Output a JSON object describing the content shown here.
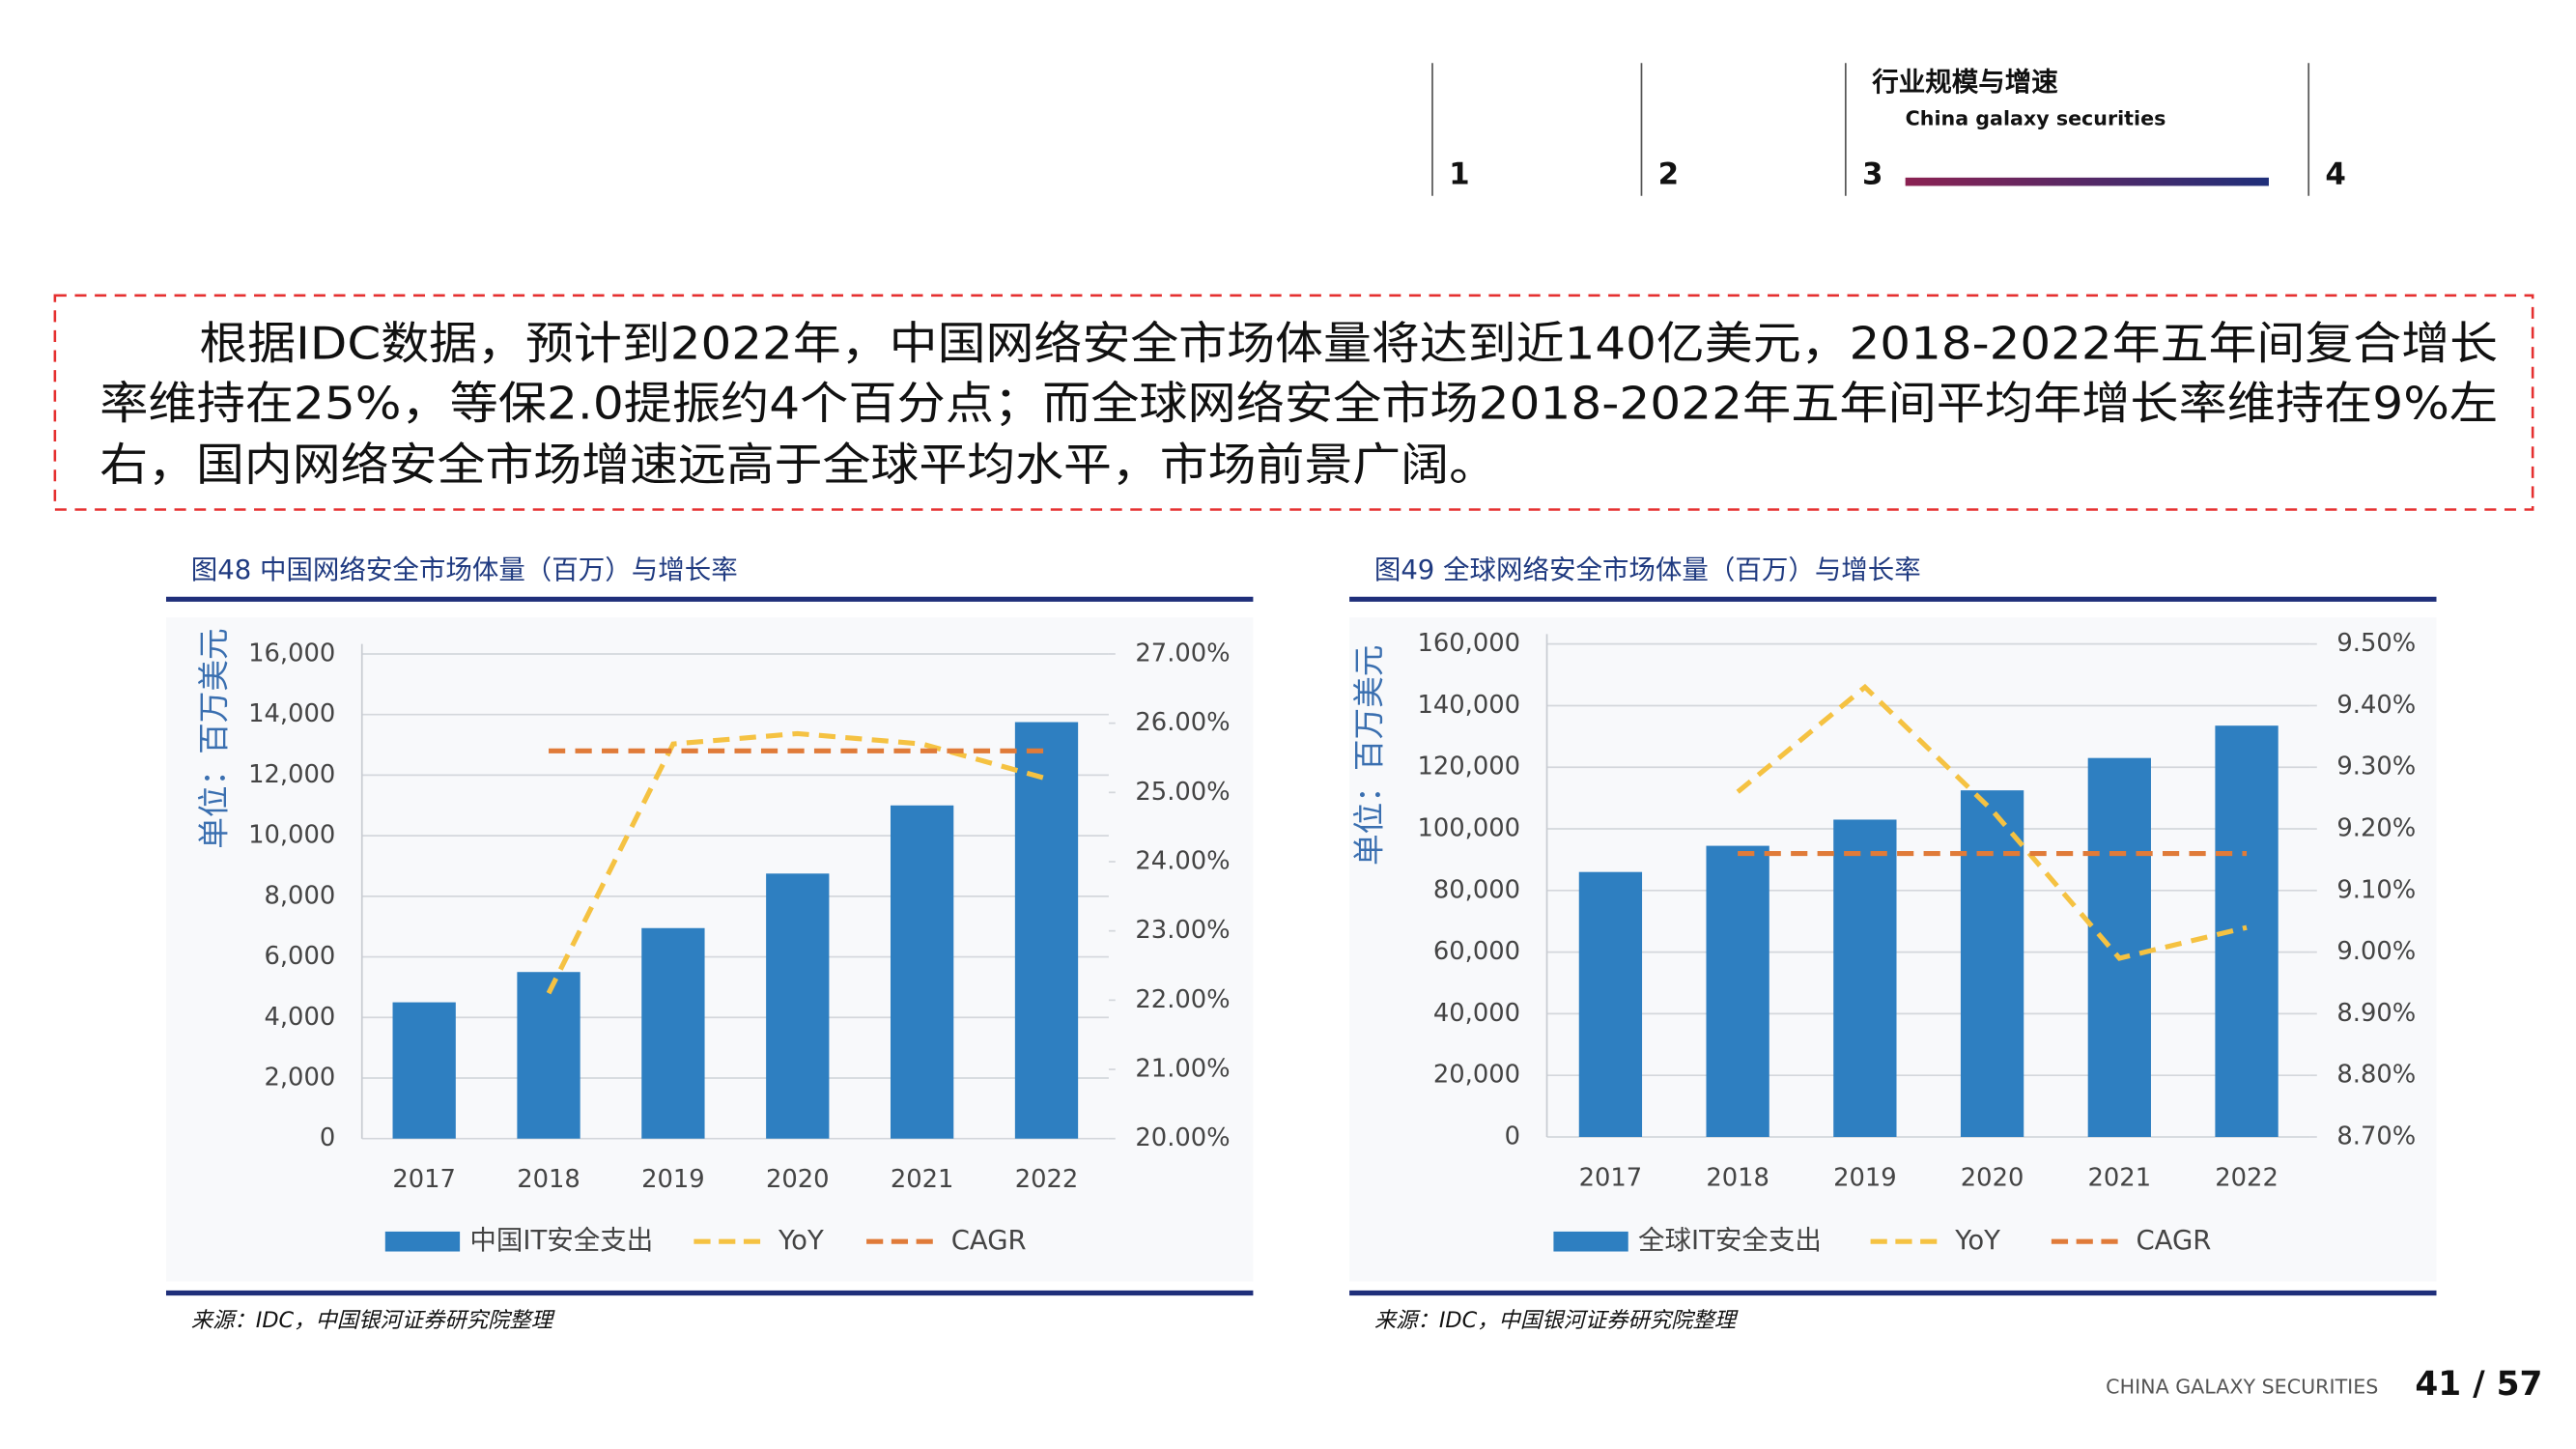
{
  "header": {
    "nav": [
      "1",
      "2",
      "3",
      "4"
    ],
    "section_title": "行业规模与增速",
    "section_subtitle": "China galaxy securities"
  },
  "paragraph": {
    "lines": [
      "根据IDC数据，预计到2022年，中国网络安全市场体量将达到近140亿美元，2018-2022年五年间复合增长",
      "率维持在25%，等保2.0提振约4个百分点；而全球网络安全市场2018-2022年五年间平均年增长率维持在9%左",
      "右，国内网络安全市场增速远高于全球平均水平，市场前景广阔。"
    ]
  },
  "chart_data": [
    {
      "type": "bar",
      "title": "图48  中国网络安全市场体量（百万）与增长率",
      "y_label": "单位：百万美元",
      "source": "来源：IDC，中国银河证券研究院整理",
      "categories": [
        "2017",
        "2018",
        "2019",
        "2020",
        "2021",
        "2022"
      ],
      "series": [
        {
          "name": "中国IT安全支出",
          "type": "bar",
          "color": "#2e7fc1",
          "values": [
            4500,
            5500,
            6950,
            8750,
            11000,
            13750
          ]
        },
        {
          "name": "YoY",
          "type": "line",
          "axis": "y2",
          "color": "#f5c242",
          "values": [
            null,
            22.1,
            25.7,
            25.85,
            25.7,
            25.2
          ]
        },
        {
          "name": "CAGR",
          "type": "line",
          "axis": "y2",
          "color": "#e07b39",
          "values": [
            null,
            25.6,
            25.6,
            25.6,
            25.6,
            25.6
          ]
        }
      ],
      "ylim": [
        0,
        16000
      ],
      "yticks": [
        0,
        {
          "value": 2000,
          "label": "2,000"
        },
        {
          "value": 4000,
          "label": "4,000"
        },
        {
          "value": 6000,
          "label": "6,000"
        },
        {
          "value": 8000,
          "label": "8,000"
        },
        {
          "value": 10000,
          "label": "10,000"
        },
        {
          "value": 12000,
          "label": "12,000"
        },
        {
          "value": 14000,
          "label": "14,000"
        },
        {
          "value": 16000,
          "label": "16,000"
        }
      ],
      "y2lim": [
        20,
        27
      ],
      "y2ticks": [
        {
          "value": 20,
          "label": "20.00%"
        },
        {
          "value": 21,
          "label": "21.00%"
        },
        {
          "value": 22,
          "label": "22.00%"
        },
        {
          "value": 23,
          "label": "23.00%"
        },
        {
          "value": 24,
          "label": "24.00%"
        },
        {
          "value": 25,
          "label": "25.00%"
        },
        {
          "value": 26,
          "label": "26.00%"
        },
        {
          "value": 27,
          "label": "27.00%"
        }
      ],
      "grid": true
    },
    {
      "type": "bar",
      "title": "图49   全球网络安全市场体量（百万）与增长率",
      "y_label": "单位：百万美元",
      "source": "来源：IDC，中国银河证券研究院整理",
      "categories": [
        "2017",
        "2018",
        "2019",
        "2020",
        "2021",
        "2022"
      ],
      "series": [
        {
          "name": "全球IT安全支出",
          "type": "bar",
          "color": "#2e7fc1",
          "values": [
            86000,
            94500,
            103000,
            112500,
            123000,
            133500
          ]
        },
        {
          "name": "YoY",
          "type": "line",
          "axis": "y2",
          "color": "#f5c242",
          "values": [
            null,
            9.26,
            9.43,
            9.23,
            8.99,
            9.04
          ]
        },
        {
          "name": "CAGR",
          "type": "line",
          "axis": "y2",
          "color": "#e07b39",
          "values": [
            null,
            9.16,
            9.16,
            9.16,
            9.16,
            9.16
          ]
        }
      ],
      "ylim": [
        0,
        160000
      ],
      "yticks": [
        0,
        {
          "value": 20000,
          "label": "20,000"
        },
        {
          "value": 40000,
          "label": "40,000"
        },
        {
          "value": 60000,
          "label": "60,000"
        },
        {
          "value": 80000,
          "label": "80,000"
        },
        {
          "value": 100000,
          "label": "100,000"
        },
        {
          "value": 120000,
          "label": "120,000"
        },
        {
          "value": 140000,
          "label": "140,000"
        },
        {
          "value": 160000,
          "label": "160,000"
        }
      ],
      "y2lim": [
        8.7,
        9.5
      ],
      "y2ticks": [
        {
          "value": 8.7,
          "label": "8.70%"
        },
        {
          "value": 8.8,
          "label": "8.80%"
        },
        {
          "value": 8.9,
          "label": "8.90%"
        },
        {
          "value": 9.0,
          "label": "9.00%"
        },
        {
          "value": 9.1,
          "label": "9.10%"
        },
        {
          "value": 9.2,
          "label": "9.20%"
        },
        {
          "value": 9.3,
          "label": "9.30%"
        },
        {
          "value": 9.4,
          "label": "9.40%"
        },
        {
          "value": 9.5,
          "label": "9.50%"
        }
      ],
      "grid": true
    }
  ],
  "footer": {
    "company": "CHINA GALAXY SECURITIES",
    "page": "41 / 57"
  }
}
